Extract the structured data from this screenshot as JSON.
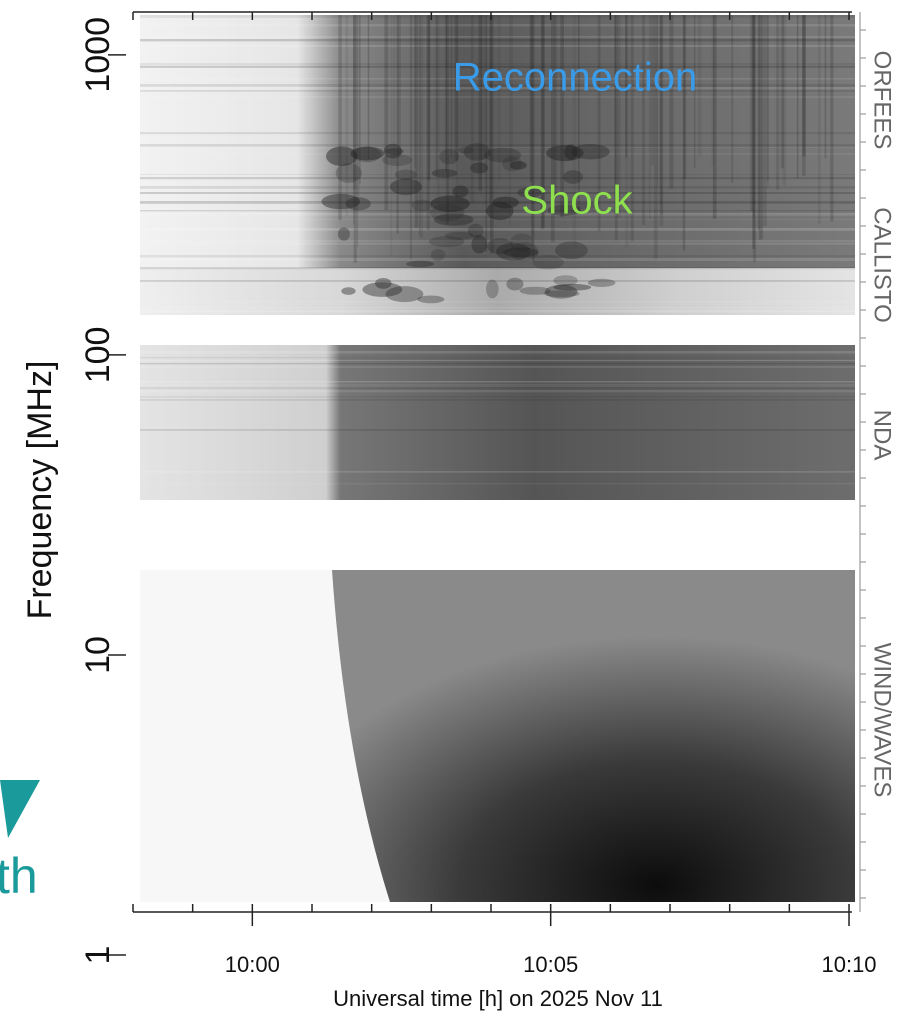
{
  "chart_data": {
    "type": "spectrogram",
    "xlabel": "Universal time [h] on 2025 Nov 11",
    "ylabel": "Frequency [MHz]",
    "xlim": [
      -2,
      10.05
    ],
    "xticks": [
      {
        "value": 0,
        "label": "10:00"
      },
      {
        "value": 5,
        "label": "10:05"
      },
      {
        "value": 10,
        "label": "10:10"
      }
    ],
    "ylim": [
      1,
      1400
    ],
    "yticks": [
      1,
      10,
      100,
      1000
    ],
    "ylog": true,
    "annotations": [
      {
        "text": "Reconnection",
        "color": "#3a9be8"
      },
      {
        "text": "Shock",
        "color": "#8fe04e"
      }
    ],
    "instruments": [
      "ORFEES",
      "CALLISTO",
      "NDA",
      "WIND/WAVES"
    ],
    "background_text": "th"
  }
}
